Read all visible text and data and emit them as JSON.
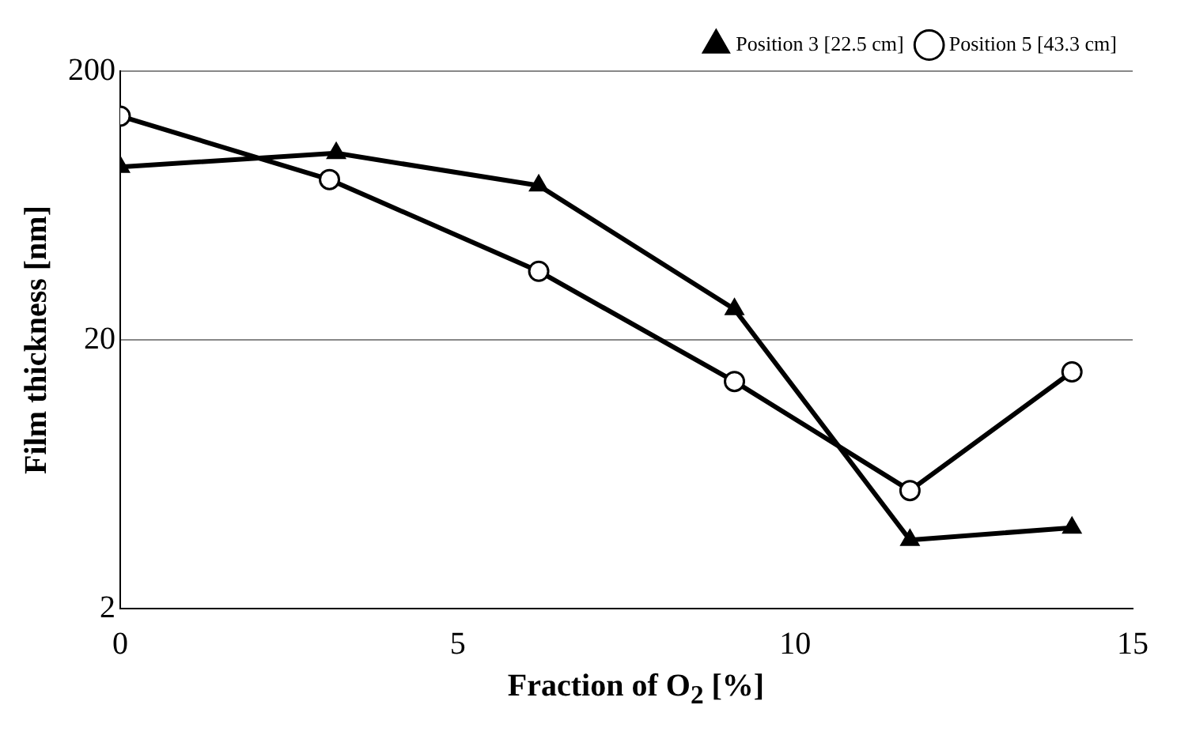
{
  "chart_data": {
    "type": "line",
    "xlabel": "Fraction of O$_{2}$ [%]",
    "ylabel": "Film thickness [nm]",
    "series": [
      {
        "name": "Position 3 [22.5 cm]",
        "color": "#000000",
        "marker": "triangle",
        "x": [
          0,
          3.2,
          6.2,
          9.1,
          11.7,
          14.1
        ],
        "values": [
          88,
          99,
          75,
          26,
          3.6,
          4.0
        ]
      },
      {
        "name": "Position 5 [43.3 cm]",
        "color": "#000000",
        "marker": "circle",
        "x": [
          0,
          3.1,
          6.2,
          9.1,
          11.7,
          14.1
        ],
        "values": [
          136,
          79,
          36,
          14,
          5.5,
          15.2
        ]
      }
    ],
    "xlim": [
      0,
      15
    ],
    "xticks": [
      0,
      5,
      10,
      15
    ],
    "ylim": [
      2,
      200
    ],
    "yticks": [
      2,
      20,
      200
    ],
    "log": "y",
    "grid": "y",
    "legend": "top right",
    "line_style": "solid"
  }
}
